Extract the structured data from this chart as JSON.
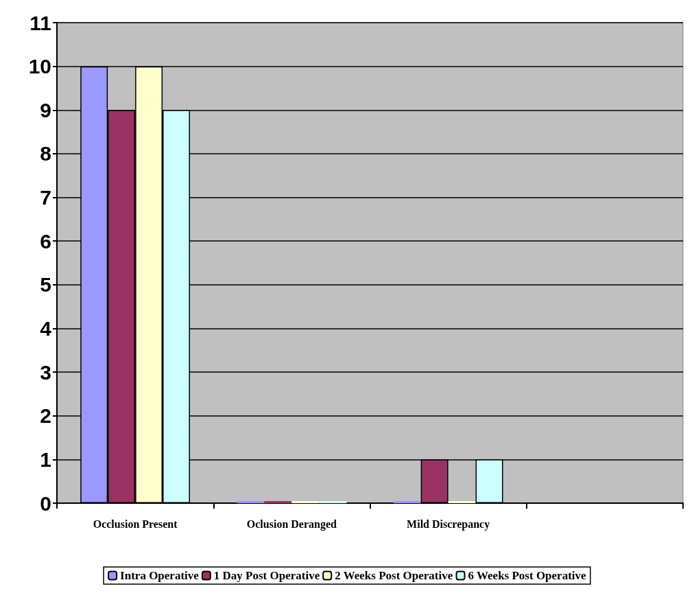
{
  "chart_data": {
    "type": "bar",
    "categories": [
      "Occlusion Present",
      "Oclusion Deranged",
      "Mild Discrepancy",
      null
    ],
    "series": [
      {
        "name": "Intra Operative",
        "color": "#9999ff",
        "values": [
          10,
          0,
          0,
          null
        ]
      },
      {
        "name": "1 Day Post Operative",
        "color": "#993366",
        "values": [
          9,
          0,
          1,
          null
        ]
      },
      {
        "name": "2 Weeks Post Operative",
        "color": "#ffffcc",
        "values": [
          10,
          0,
          0,
          null
        ]
      },
      {
        "name": "6 Weeks Post Operative",
        "color": "#ccffff",
        "values": [
          9,
          0,
          1,
          null
        ]
      }
    ],
    "ylim": [
      0,
      11
    ],
    "yticks": [
      0,
      1,
      2,
      3,
      4,
      5,
      6,
      7,
      8,
      9,
      10,
      11
    ],
    "grid": "y",
    "legend": "bottom"
  }
}
